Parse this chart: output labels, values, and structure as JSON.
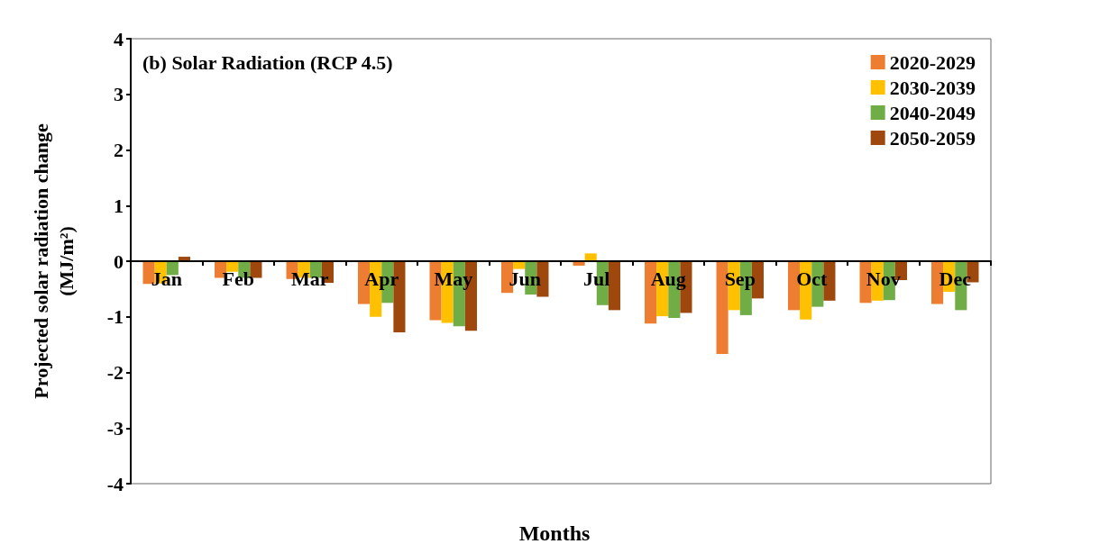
{
  "chart_data": {
    "type": "bar",
    "title": "(b) Solar Radiation (RCP 4.5)",
    "xlabel": "Months",
    "ylabel": "Projected solar radiation change\n(MJ/m²)",
    "categories": [
      "Jan",
      "Feb",
      "Mar",
      "Apr",
      "May",
      "Jun",
      "Jul",
      "Aug",
      "Sep",
      "Oct",
      "Nov",
      "Dec"
    ],
    "series": [
      {
        "name": "2020-2029",
        "color": "#ed7d31",
        "values": [
          -0.41,
          -0.3,
          -0.32,
          -0.77,
          -1.06,
          -0.57,
          -0.08,
          -1.12,
          -1.67,
          -0.88,
          -0.75,
          -0.77
        ]
      },
      {
        "name": "2030-2039",
        "color": "#ffc000",
        "values": [
          -0.4,
          -0.19,
          -0.3,
          -1.0,
          -1.11,
          -0.14,
          0.14,
          -0.99,
          -0.88,
          -1.05,
          -0.71,
          -0.55
        ]
      },
      {
        "name": "2040-2049",
        "color": "#70ad47",
        "values": [
          -0.25,
          -0.3,
          -0.3,
          -0.75,
          -1.17,
          -0.6,
          -0.79,
          -1.02,
          -0.97,
          -0.82,
          -0.7,
          -0.88
        ]
      },
      {
        "name": "2050-2059",
        "color": "#9e480e",
        "values": [
          0.08,
          -0.3,
          -0.39,
          -1.28,
          -1.25,
          -0.64,
          -0.88,
          -0.93,
          -0.67,
          -0.71,
          -0.34,
          -0.38
        ]
      }
    ],
    "ylim": [
      -4,
      4
    ],
    "yticks": [
      -4,
      -3,
      -2,
      -1,
      0,
      1,
      2,
      3,
      4
    ],
    "legend": "top right"
  }
}
